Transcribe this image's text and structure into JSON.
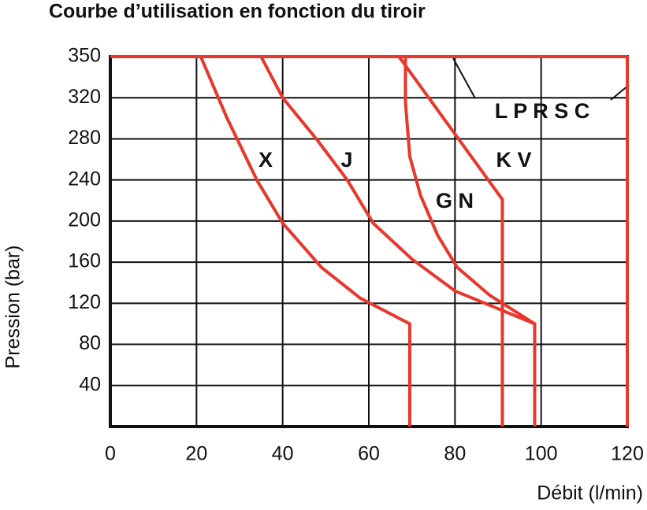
{
  "chart_data": {
    "type": "line",
    "title": "Courbe d’utilisation en fonction du tiroir",
    "x_label": "Débit (l/min)",
    "y_label": "Pression (bar)",
    "xlim": [
      0,
      120
    ],
    "xticks": [
      0,
      20,
      40,
      60,
      80,
      100,
      120
    ],
    "ylim": [
      0,
      350
    ],
    "yticks": [
      40,
      80,
      120,
      160,
      200,
      240,
      280,
      320,
      350
    ],
    "grid": true,
    "series": [
      {
        "name": "X",
        "color": "#e8372c",
        "x": [
          21,
          27,
          34,
          40,
          49,
          58,
          69.5,
          69.5
        ],
        "values": [
          350,
          301,
          240,
          198,
          155,
          125,
          100,
          0
        ]
      },
      {
        "name": "J",
        "color": "#e8372c",
        "x": [
          35,
          40,
          48,
          55,
          61,
          70,
          80,
          91,
          98.5,
          98.5
        ],
        "values": [
          350,
          320,
          279,
          240,
          198,
          163,
          132,
          113,
          100,
          0
        ]
      },
      {
        "name": "G N",
        "color": "#e8372c",
        "x": [
          68.5,
          68.5,
          69.5,
          72,
          76,
          80.5,
          88,
          98.5,
          98.5
        ],
        "values": [
          350,
          316,
          263,
          225,
          186,
          155,
          128,
          100,
          0
        ]
      },
      {
        "name": "K V",
        "color": "#e8372c",
        "x": [
          67,
          91,
          91
        ],
        "values": [
          350,
          221,
          0
        ]
      },
      {
        "name": "L P R S C",
        "color": "#e8372c",
        "x": [
          0,
          120,
          120
        ],
        "values": [
          350,
          350,
          0
        ]
      }
    ]
  }
}
